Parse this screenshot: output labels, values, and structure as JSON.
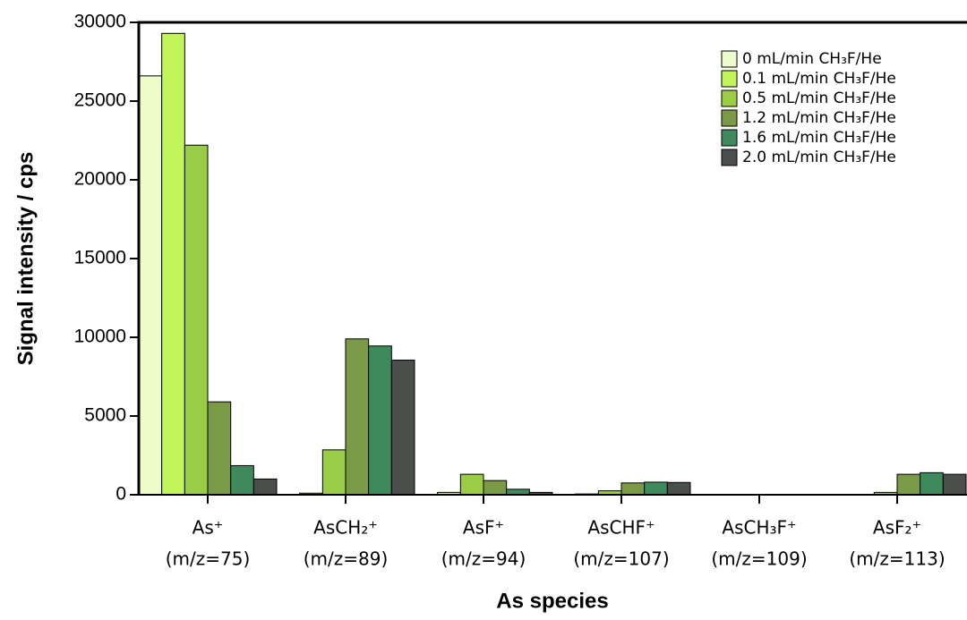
{
  "chart_data": {
    "type": "bar",
    "x_label": "As species",
    "y_label": "Signal intensity / cps",
    "categories": [
      [
        "As⁺",
        "(m/z=75)"
      ],
      [
        "AsCH₂⁺",
        "(m/z=89)"
      ],
      [
        "AsF⁺",
        "(m/z=94)"
      ],
      [
        "AsCHF⁺",
        "(m/z=107)"
      ],
      [
        "AsCH₃F⁺",
        "(m/z=109)"
      ],
      [
        "AsF₂⁺",
        "(m/z=113)"
      ]
    ],
    "series": [
      {
        "name": "0 mL/min CH₃F/He",
        "color": "#eefccc",
        "values": [
          26600,
          0,
          0,
          0,
          0,
          0
        ]
      },
      {
        "name": "0.1 mL/min CH₃F/He",
        "color": "#c2f55a",
        "values": [
          29300,
          100,
          150,
          50,
          0,
          0
        ]
      },
      {
        "name": "0.5 mL/min CH₃F/He",
        "color": "#9acd45",
        "values": [
          22200,
          2850,
          1300,
          250,
          0,
          150
        ]
      },
      {
        "name": "1.2 mL/min CH₃F/He",
        "color": "#7a9a48",
        "values": [
          5900,
          9900,
          900,
          750,
          0,
          1300
        ]
      },
      {
        "name": "1.6 mL/min CH₃F/He",
        "color": "#3e8a5c",
        "values": [
          1850,
          9450,
          350,
          800,
          0,
          1400
        ]
      },
      {
        "name": "2.0 mL/min CH₃F/He",
        "color": "#4a4f4c",
        "values": [
          1000,
          8550,
          150,
          780,
          0,
          1300
        ]
      }
    ],
    "ylim": [
      0,
      30000
    ],
    "yticks": [
      0,
      5000,
      10000,
      15000,
      20000,
      25000,
      30000
    ],
    "legend": "upper right"
  }
}
